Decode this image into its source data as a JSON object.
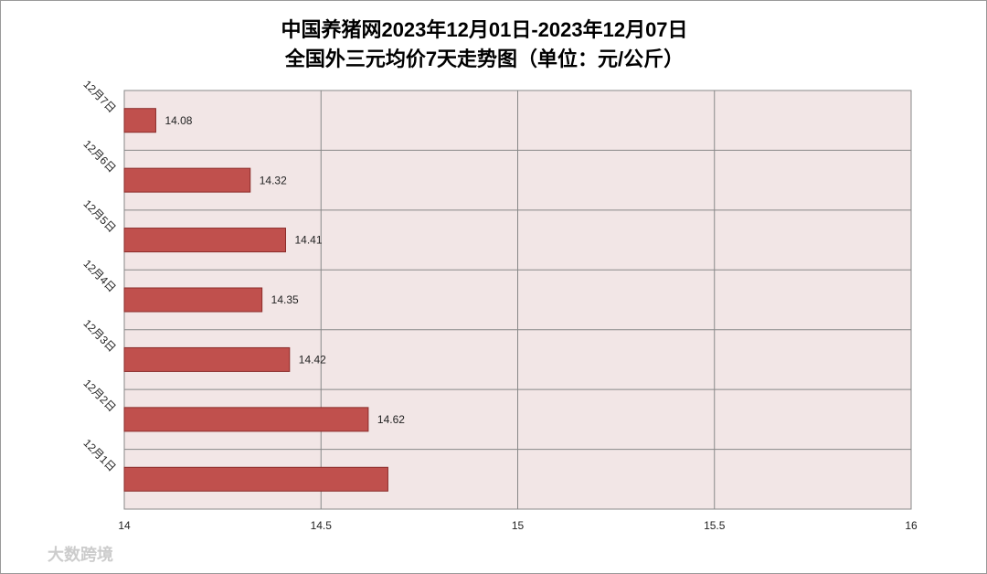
{
  "chart_data": {
    "type": "bar",
    "orientation": "horizontal",
    "title": "中国养猪网2023年12月01日-2023年12月07日",
    "subtitle": "全国外三元均价7天走势图（单位：元/公斤）",
    "categories": [
      "12月7日",
      "12月6日",
      "12月5日",
      "12月4日",
      "12月3日",
      "12月2日",
      "12月1日"
    ],
    "values": [
      14.08,
      14.32,
      14.41,
      14.35,
      14.42,
      14.62,
      14.67
    ],
    "value_labels": [
      "14.08",
      "14.32",
      "14.41",
      "14.35",
      "14.42",
      "14.62",
      null
    ],
    "color": "#c0504d",
    "xlim": [
      14,
      16
    ],
    "xticks": [
      14,
      14.5,
      15,
      15.5,
      16
    ],
    "grid": true,
    "watermark": "大数跨境"
  }
}
